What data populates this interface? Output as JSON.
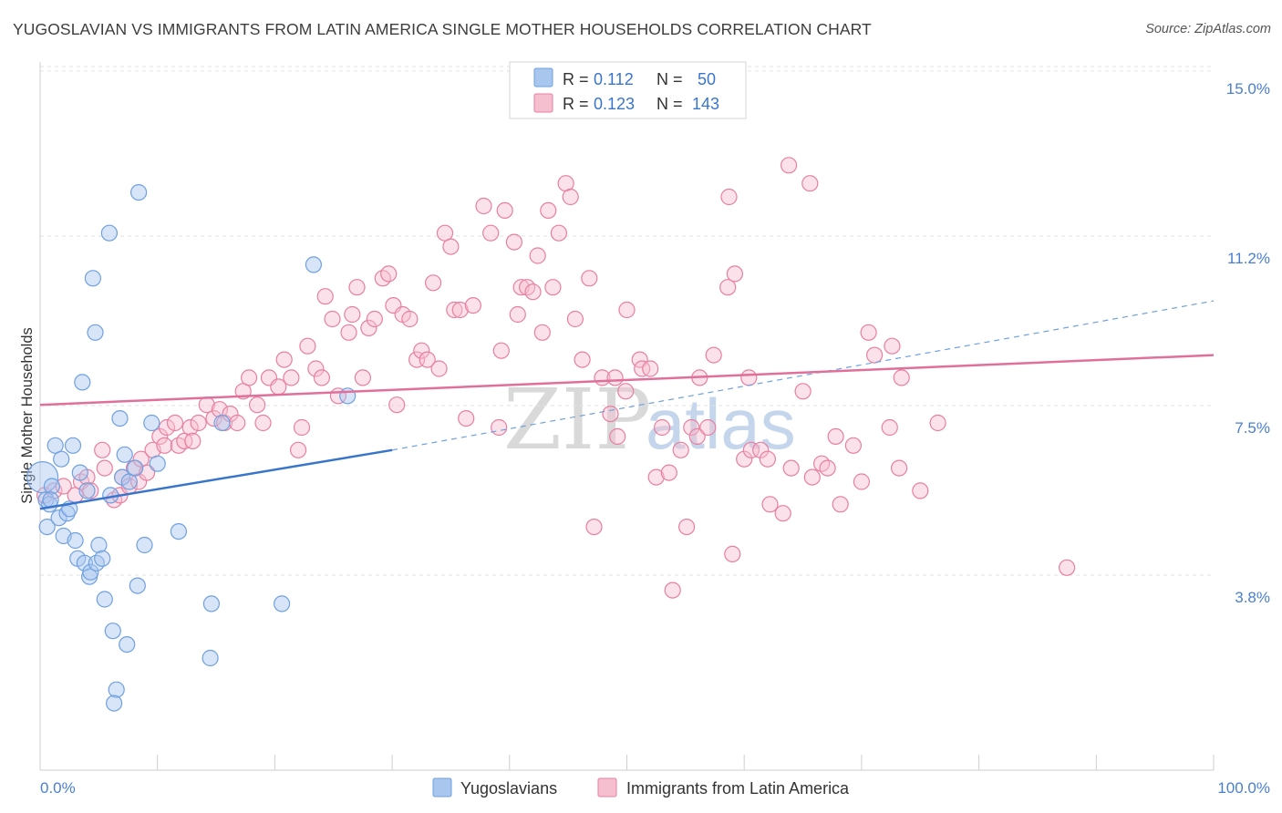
{
  "title": "YUGOSLAVIAN VS IMMIGRANTS FROM LATIN AMERICA SINGLE MOTHER HOUSEHOLDS CORRELATION CHART",
  "source": "Source: ZipAtlas.com",
  "watermark": {
    "zip": "ZIP",
    "atlas": "atlas"
  },
  "colors": {
    "blue": "#6fa0e0",
    "blue_fill": "#a9c6ef",
    "blue_line": "#3a75cc",
    "pink": "#e87fa0",
    "pink_fill": "#f6bfd0",
    "pink_line": "#e0709a",
    "axis_text": "#4a7fd0",
    "grid": "#d9d9d9"
  },
  "legend": {
    "r_label": "R =",
    "n_label": "N =",
    "rows": [
      {
        "r": "0.112",
        "n": "50"
      },
      {
        "r": "0.123",
        "n": "143"
      }
    ]
  },
  "chart_data": {
    "type": "scatter",
    "ylabel": "Single Mother Households",
    "x_tick_labels": [
      "0.0%",
      "100.0%"
    ],
    "y_tick_labels": [
      "15.0%",
      "11.2%",
      "7.5%",
      "3.8%"
    ],
    "y_ticks": [
      15.0,
      11.25,
      7.5,
      3.75
    ],
    "xlim": [
      0,
      100
    ],
    "ylim": [
      0,
      15.6
    ],
    "grid": "horizontal dashed",
    "legend_position": "top-center",
    "series": [
      {
        "name": "Yugoslavians",
        "color": "#6fa0e0",
        "trend": {
          "x0": 0,
          "y0": 5.7,
          "x1": 30,
          "y1": 7.0,
          "x_ext": 100,
          "y_ext": 10.3
        },
        "points": [
          [
            0.2,
            6.4
          ],
          [
            0.5,
            5.9
          ],
          [
            0.6,
            5.3
          ],
          [
            0.8,
            5.8
          ],
          [
            1.0,
            6.2
          ],
          [
            1.3,
            7.1
          ],
          [
            1.6,
            5.5
          ],
          [
            1.8,
            6.8
          ],
          [
            2.0,
            5.1
          ],
          [
            2.3,
            5.6
          ],
          [
            2.5,
            5.7
          ],
          [
            2.8,
            7.1
          ],
          [
            3.0,
            5.0
          ],
          [
            3.2,
            4.6
          ],
          [
            3.4,
            6.5
          ],
          [
            3.6,
            8.5
          ],
          [
            3.8,
            4.5
          ],
          [
            4.0,
            6.1
          ],
          [
            4.2,
            4.2
          ],
          [
            4.3,
            4.3
          ],
          [
            4.5,
            10.8
          ],
          [
            4.7,
            9.6
          ],
          [
            4.8,
            4.5
          ],
          [
            5.0,
            4.9
          ],
          [
            5.3,
            4.6
          ],
          [
            5.5,
            3.7
          ],
          [
            5.9,
            11.8
          ],
          [
            6.0,
            6.0
          ],
          [
            6.2,
            3.0
          ],
          [
            6.5,
            1.7
          ],
          [
            6.8,
            7.7
          ],
          [
            7.0,
            6.4
          ],
          [
            7.2,
            6.9
          ],
          [
            7.4,
            2.7
          ],
          [
            7.6,
            6.3
          ],
          [
            8.1,
            6.6
          ],
          [
            8.3,
            4.0
          ],
          [
            8.4,
            12.7
          ],
          [
            8.9,
            4.9
          ],
          [
            9.5,
            7.6
          ],
          [
            10.0,
            6.7
          ],
          [
            11.8,
            5.2
          ],
          [
            14.5,
            2.4
          ],
          [
            14.6,
            3.6
          ],
          [
            15.5,
            7.6
          ],
          [
            20.6,
            3.6
          ],
          [
            23.3,
            11.1
          ],
          [
            26.2,
            8.2
          ],
          [
            0.9,
            5.9
          ],
          [
            6.3,
            1.4
          ]
        ]
      },
      {
        "name": "Immigrants from Latin America",
        "color": "#e87fa0",
        "trend": {
          "x0": 0,
          "y0": 8.0,
          "x1": 100,
          "y1": 9.1
        },
        "points": [
          [
            0.4,
            6.0
          ],
          [
            1.2,
            6.1
          ],
          [
            2.0,
            6.2
          ],
          [
            3.0,
            6.0
          ],
          [
            3.5,
            6.3
          ],
          [
            4.0,
            6.4
          ],
          [
            4.3,
            6.1
          ],
          [
            5.3,
            7.0
          ],
          [
            5.5,
            6.6
          ],
          [
            6.3,
            5.9
          ],
          [
            6.8,
            6.0
          ],
          [
            7.0,
            6.4
          ],
          [
            7.6,
            6.2
          ],
          [
            8.0,
            6.6
          ],
          [
            8.4,
            6.3
          ],
          [
            8.6,
            6.8
          ],
          [
            9.1,
            6.5
          ],
          [
            9.6,
            7.0
          ],
          [
            10.2,
            7.3
          ],
          [
            10.6,
            7.1
          ],
          [
            10.8,
            7.5
          ],
          [
            11.5,
            7.6
          ],
          [
            11.8,
            7.1
          ],
          [
            12.3,
            7.2
          ],
          [
            12.8,
            7.5
          ],
          [
            13.0,
            7.2
          ],
          [
            13.5,
            7.6
          ],
          [
            14.2,
            8.0
          ],
          [
            14.8,
            7.7
          ],
          [
            15.3,
            7.9
          ],
          [
            15.7,
            7.6
          ],
          [
            16.2,
            7.8
          ],
          [
            16.8,
            7.6
          ],
          [
            17.3,
            8.3
          ],
          [
            17.8,
            8.6
          ],
          [
            18.5,
            8.0
          ],
          [
            19.0,
            7.6
          ],
          [
            19.5,
            8.6
          ],
          [
            20.3,
            8.4
          ],
          [
            20.8,
            9.0
          ],
          [
            21.4,
            8.6
          ],
          [
            22.0,
            7.0
          ],
          [
            22.3,
            7.5
          ],
          [
            22.8,
            9.3
          ],
          [
            23.5,
            8.8
          ],
          [
            24.0,
            8.6
          ],
          [
            24.3,
            10.4
          ],
          [
            24.9,
            9.9
          ],
          [
            25.4,
            8.2
          ],
          [
            26.3,
            9.6
          ],
          [
            26.6,
            10.0
          ],
          [
            27.0,
            10.6
          ],
          [
            27.5,
            8.6
          ],
          [
            28.0,
            9.7
          ],
          [
            28.5,
            9.9
          ],
          [
            29.2,
            10.8
          ],
          [
            29.7,
            10.9
          ],
          [
            30.1,
            10.2
          ],
          [
            30.4,
            8.0
          ],
          [
            30.9,
            10.0
          ],
          [
            31.5,
            9.9
          ],
          [
            32.1,
            9.0
          ],
          [
            32.5,
            9.2
          ],
          [
            33.0,
            9.0
          ],
          [
            33.5,
            10.7
          ],
          [
            34.0,
            8.8
          ],
          [
            34.5,
            11.8
          ],
          [
            35.0,
            11.5
          ],
          [
            35.3,
            10.1
          ],
          [
            35.8,
            10.1
          ],
          [
            36.3,
            7.7
          ],
          [
            36.9,
            10.2
          ],
          [
            37.8,
            12.4
          ],
          [
            38.4,
            11.8
          ],
          [
            39.1,
            7.5
          ],
          [
            39.3,
            9.2
          ],
          [
            39.6,
            12.3
          ],
          [
            40.4,
            11.6
          ],
          [
            40.7,
            10.0
          ],
          [
            41.0,
            10.6
          ],
          [
            41.5,
            10.6
          ],
          [
            42.0,
            10.5
          ],
          [
            42.4,
            11.3
          ],
          [
            42.8,
            9.6
          ],
          [
            43.3,
            12.3
          ],
          [
            43.7,
            10.6
          ],
          [
            44.2,
            11.8
          ],
          [
            44.8,
            12.9
          ],
          [
            45.2,
            12.6
          ],
          [
            45.6,
            9.9
          ],
          [
            46.2,
            9.0
          ],
          [
            46.8,
            10.8
          ],
          [
            47.2,
            5.3
          ],
          [
            47.9,
            8.6
          ],
          [
            48.6,
            7.8
          ],
          [
            49.0,
            8.6
          ],
          [
            49.2,
            7.3
          ],
          [
            49.9,
            8.3
          ],
          [
            50.0,
            10.1
          ],
          [
            51.1,
            9.0
          ],
          [
            51.3,
            8.8
          ],
          [
            52.0,
            8.8
          ],
          [
            52.5,
            6.4
          ],
          [
            53.0,
            7.5
          ],
          [
            53.6,
            6.5
          ],
          [
            53.9,
            3.9
          ],
          [
            54.6,
            7.0
          ],
          [
            55.1,
            5.3
          ],
          [
            55.5,
            7.5
          ],
          [
            56.0,
            7.3
          ],
          [
            56.2,
            8.6
          ],
          [
            56.9,
            7.5
          ],
          [
            57.4,
            9.1
          ],
          [
            58.6,
            10.6
          ],
          [
            58.7,
            12.6
          ],
          [
            59.0,
            4.7
          ],
          [
            59.2,
            10.9
          ],
          [
            60.0,
            6.8
          ],
          [
            60.4,
            8.6
          ],
          [
            60.6,
            7.0
          ],
          [
            61.4,
            7.0
          ],
          [
            62.0,
            6.8
          ],
          [
            62.2,
            5.8
          ],
          [
            63.3,
            5.6
          ],
          [
            63.8,
            13.3
          ],
          [
            64.0,
            6.6
          ],
          [
            65.0,
            8.3
          ],
          [
            65.6,
            12.9
          ],
          [
            65.8,
            6.4
          ],
          [
            66.6,
            6.7
          ],
          [
            67.1,
            6.6
          ],
          [
            67.8,
            7.3
          ],
          [
            68.2,
            5.8
          ],
          [
            69.3,
            7.1
          ],
          [
            70.0,
            6.3
          ],
          [
            70.6,
            9.6
          ],
          [
            71.1,
            9.1
          ],
          [
            72.4,
            7.5
          ],
          [
            72.6,
            9.3
          ],
          [
            73.2,
            6.6
          ],
          [
            73.4,
            8.6
          ],
          [
            75.0,
            6.1
          ],
          [
            76.5,
            7.6
          ],
          [
            87.5,
            4.4
          ]
        ]
      }
    ],
    "bottom_legend": [
      "Yugoslavians",
      "Immigrants from Latin America"
    ]
  }
}
